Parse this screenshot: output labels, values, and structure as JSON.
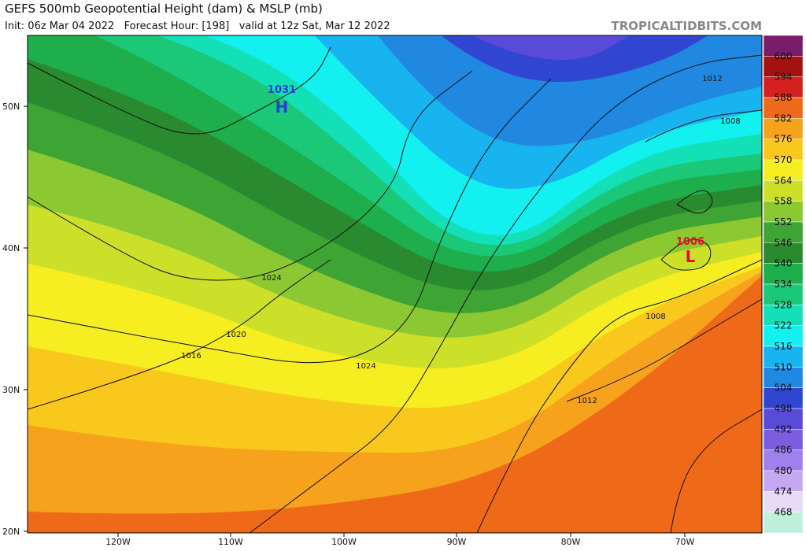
{
  "header": {
    "title": "GEFS 500mb Geopotential Height (dam) & MSLP (mb)",
    "subtitle": "Init: 06z Mar 04 2022   Forecast Hour: [198]   valid at 12z Sat, Mar 12 2022",
    "watermark": "TROPICALTIDBITS.COM"
  },
  "map": {
    "latitude_labels": [
      "50N",
      "40N",
      "30N",
      "20N"
    ],
    "longitude_labels": [
      "120W",
      "110W",
      "100W",
      "90W",
      "80W",
      "70W"
    ],
    "isobar_labels": [
      "1024",
      "1020",
      "1016",
      "1024",
      "1008",
      "1012",
      "1012",
      "1008"
    ],
    "pressure_centers": [
      {
        "symbol": "H",
        "pressure": "1031"
      },
      {
        "symbol": "L",
        "pressure": "1006"
      }
    ]
  },
  "colorbar": {
    "levels": [
      600,
      594,
      588,
      582,
      576,
      570,
      564,
      558,
      552,
      546,
      540,
      534,
      528,
      522,
      516,
      510,
      504,
      498,
      492,
      486,
      480,
      474,
      468
    ],
    "colors": [
      "#7a1c6c",
      "#a51212",
      "#d62020",
      "#ee6a18",
      "#f6a21c",
      "#f9c81c",
      "#f6ee20",
      "#cce02a",
      "#8cc832",
      "#3ea434",
      "#2a8a30",
      "#1eae4c",
      "#1ac878",
      "#14e0b8",
      "#12f0f0",
      "#18b4f0",
      "#2088e0",
      "#3046d0",
      "#5a4ad8",
      "#7a5ee0",
      "#a080ec",
      "#c4a8f2",
      "#e6dcf8",
      "#bff0dc"
    ]
  }
}
